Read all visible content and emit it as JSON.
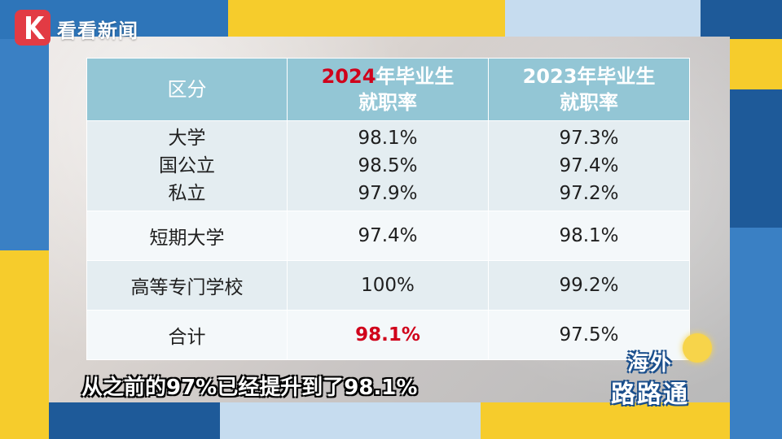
{
  "brand": {
    "logo_text": "看看新闻"
  },
  "table": {
    "header": {
      "col1": "区分",
      "col2_highlight": "2024",
      "col2_rest": "年毕业生",
      "col2_line2": "就职率",
      "col3_line1": "2023年毕业生",
      "col3_line2": "就职率"
    },
    "rows": [
      {
        "categories": [
          "大学",
          "国公立",
          "私立"
        ],
        "rate2024": [
          "98.1%",
          "98.5%",
          "97.9%"
        ],
        "rate2023": [
          "97.3%",
          "97.4%",
          "97.2%"
        ]
      },
      {
        "category": "短期大学",
        "rate2024": "97.4%",
        "rate2023": "98.1%"
      },
      {
        "category": "高等专门学校",
        "rate2024": "100%",
        "rate2023": "99.2%"
      },
      {
        "category": "合计",
        "rate2024": "98.1%",
        "rate2023": "97.5%"
      }
    ]
  },
  "subtitle": "从之前的97%已经提升到了98.1%",
  "badge": {
    "line1": "海外",
    "line2": "路路通"
  },
  "colors": {
    "header_bg": "#93c6d5",
    "highlight_red": "#d0021b",
    "frame_blue": "#1e5a99",
    "frame_yellow": "#f6cc2c",
    "frame_lightblue": "#c6dcef"
  }
}
